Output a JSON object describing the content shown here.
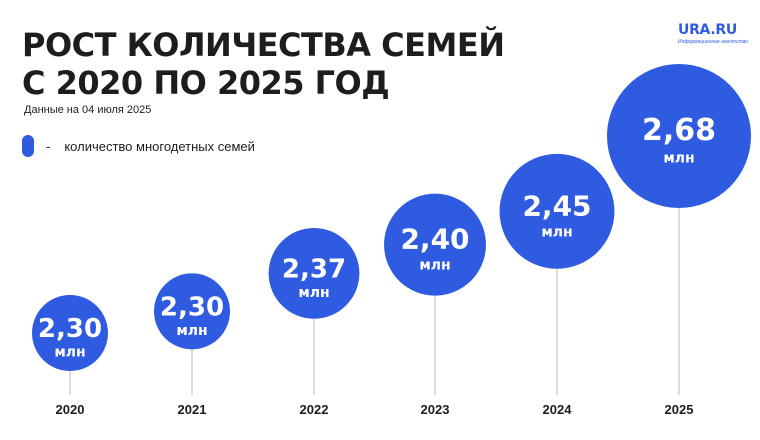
{
  "header": {
    "title_line1": "РОСТ КОЛИЧЕСТВА СЕМЕЙ",
    "title_line2": "С 2020 ПО 2025 ГОД",
    "subtitle": "Данные на 04 июля 2025"
  },
  "legend": {
    "dash": "-",
    "label": "количество многодетных семей"
  },
  "logo": {
    "text": "URA.RU",
    "sub": "Информационное агентство"
  },
  "colors": {
    "bubble": "#2f5be0",
    "text_dark": "#1d1d1f",
    "stem": "#b9b9b9"
  },
  "chart_data": {
    "type": "bubble",
    "title": "РОСТ КОЛИЧЕСТВА СЕМЕЙ С 2020 ПО 2025 ГОД",
    "categories": [
      "2020",
      "2021",
      "2022",
      "2023",
      "2024",
      "2025"
    ],
    "values": [
      2.3,
      2.3,
      2.37,
      2.4,
      2.45,
      2.68
    ],
    "value_labels": [
      "2,30",
      "2,30",
      "2,37",
      "2,40",
      "2,45",
      "2,68"
    ],
    "unit": "млн",
    "series": [
      {
        "name": "количество многодетных семей",
        "values": [
          2.3,
          2.3,
          2.37,
          2.4,
          2.45,
          2.68
        ]
      }
    ]
  }
}
